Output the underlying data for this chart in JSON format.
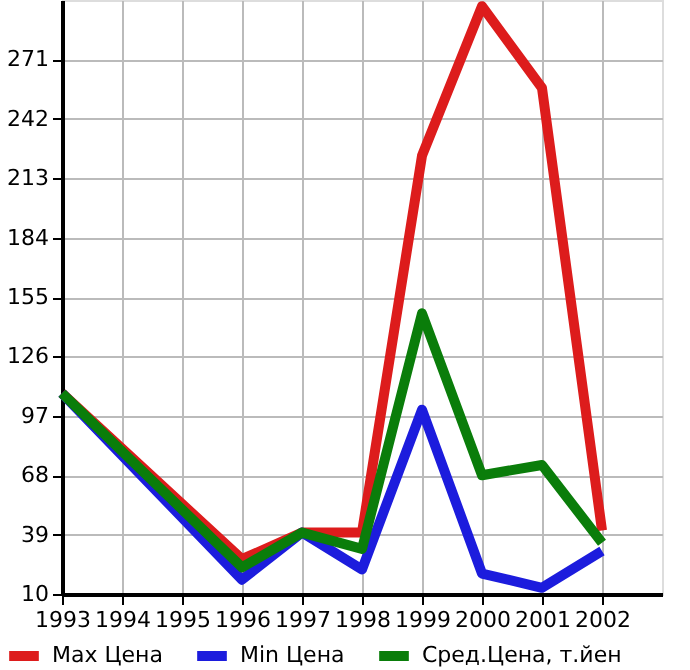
{
  "chart_data": {
    "type": "line",
    "x": [
      1993,
      1996,
      1997,
      1998,
      1999,
      2000,
      2001,
      2002
    ],
    "series": [
      {
        "name": "Max Цена",
        "color": "#dd1c1c",
        "values": [
          108,
          27,
          40,
          40,
          224,
          297,
          257,
          41
        ]
      },
      {
        "name": "Min Цена",
        "color": "#1c1cdd",
        "values": [
          108,
          17,
          40,
          22,
          100,
          20,
          13,
          31
        ]
      },
      {
        "name": "Сред.Цена, т.йен",
        "color": "#0a7d0a",
        "values": [
          108,
          23,
          40,
          32,
          147,
          68,
          73,
          35
        ]
      }
    ],
    "xlim": [
      1993,
      2003
    ],
    "xticks": [
      1993,
      1994,
      1995,
      1996,
      1997,
      1998,
      1999,
      2000,
      2001,
      2002
    ],
    "ylim": [
      10,
      300
    ],
    "yticks": [
      10,
      39,
      68,
      97,
      126,
      155,
      184,
      213,
      242,
      271
    ],
    "grid": true,
    "legend": "bottom",
    "marker": "none",
    "line_style": "solid"
  }
}
